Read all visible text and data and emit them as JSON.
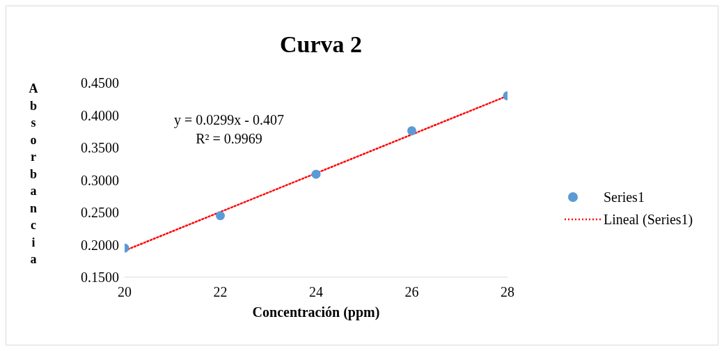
{
  "chart_data": {
    "type": "scatter",
    "title": "Curva 2",
    "xlabel": "Concentración (ppm)",
    "ylabel": "Absorbancia",
    "x": [
      20,
      22,
      24,
      26,
      28
    ],
    "series": [
      {
        "name": "Series1",
        "color": "#5b9bd5",
        "marker": "circle",
        "values": [
          0.195,
          0.245,
          0.309,
          0.376,
          0.43
        ]
      },
      {
        "name": "Lineal (Series1)",
        "type": "line",
        "color": "#ff0000",
        "line_style": "dotted",
        "marker": "none",
        "x": [
          20,
          28
        ],
        "values": [
          0.191,
          0.43
        ]
      }
    ],
    "xlim": [
      20,
      28
    ],
    "xticks": [
      20,
      22,
      24,
      26,
      28
    ],
    "ylim": [
      0.15,
      0.45
    ],
    "yticks": [
      {
        "value": 0.15,
        "label": "0.1500"
      },
      {
        "value": 0.2,
        "label": "0.2000"
      },
      {
        "value": 0.25,
        "label": "0.2500"
      },
      {
        "value": 0.3,
        "label": "0.3000"
      },
      {
        "value": 0.35,
        "label": "0.3500"
      },
      {
        "value": 0.4,
        "label": "0.4000"
      },
      {
        "value": 0.45,
        "label": "0.4500"
      }
    ],
    "annotations": [
      "y = 0.0299x - 0.407",
      "R² = 0.9969"
    ],
    "grid": false,
    "legend": "right"
  }
}
